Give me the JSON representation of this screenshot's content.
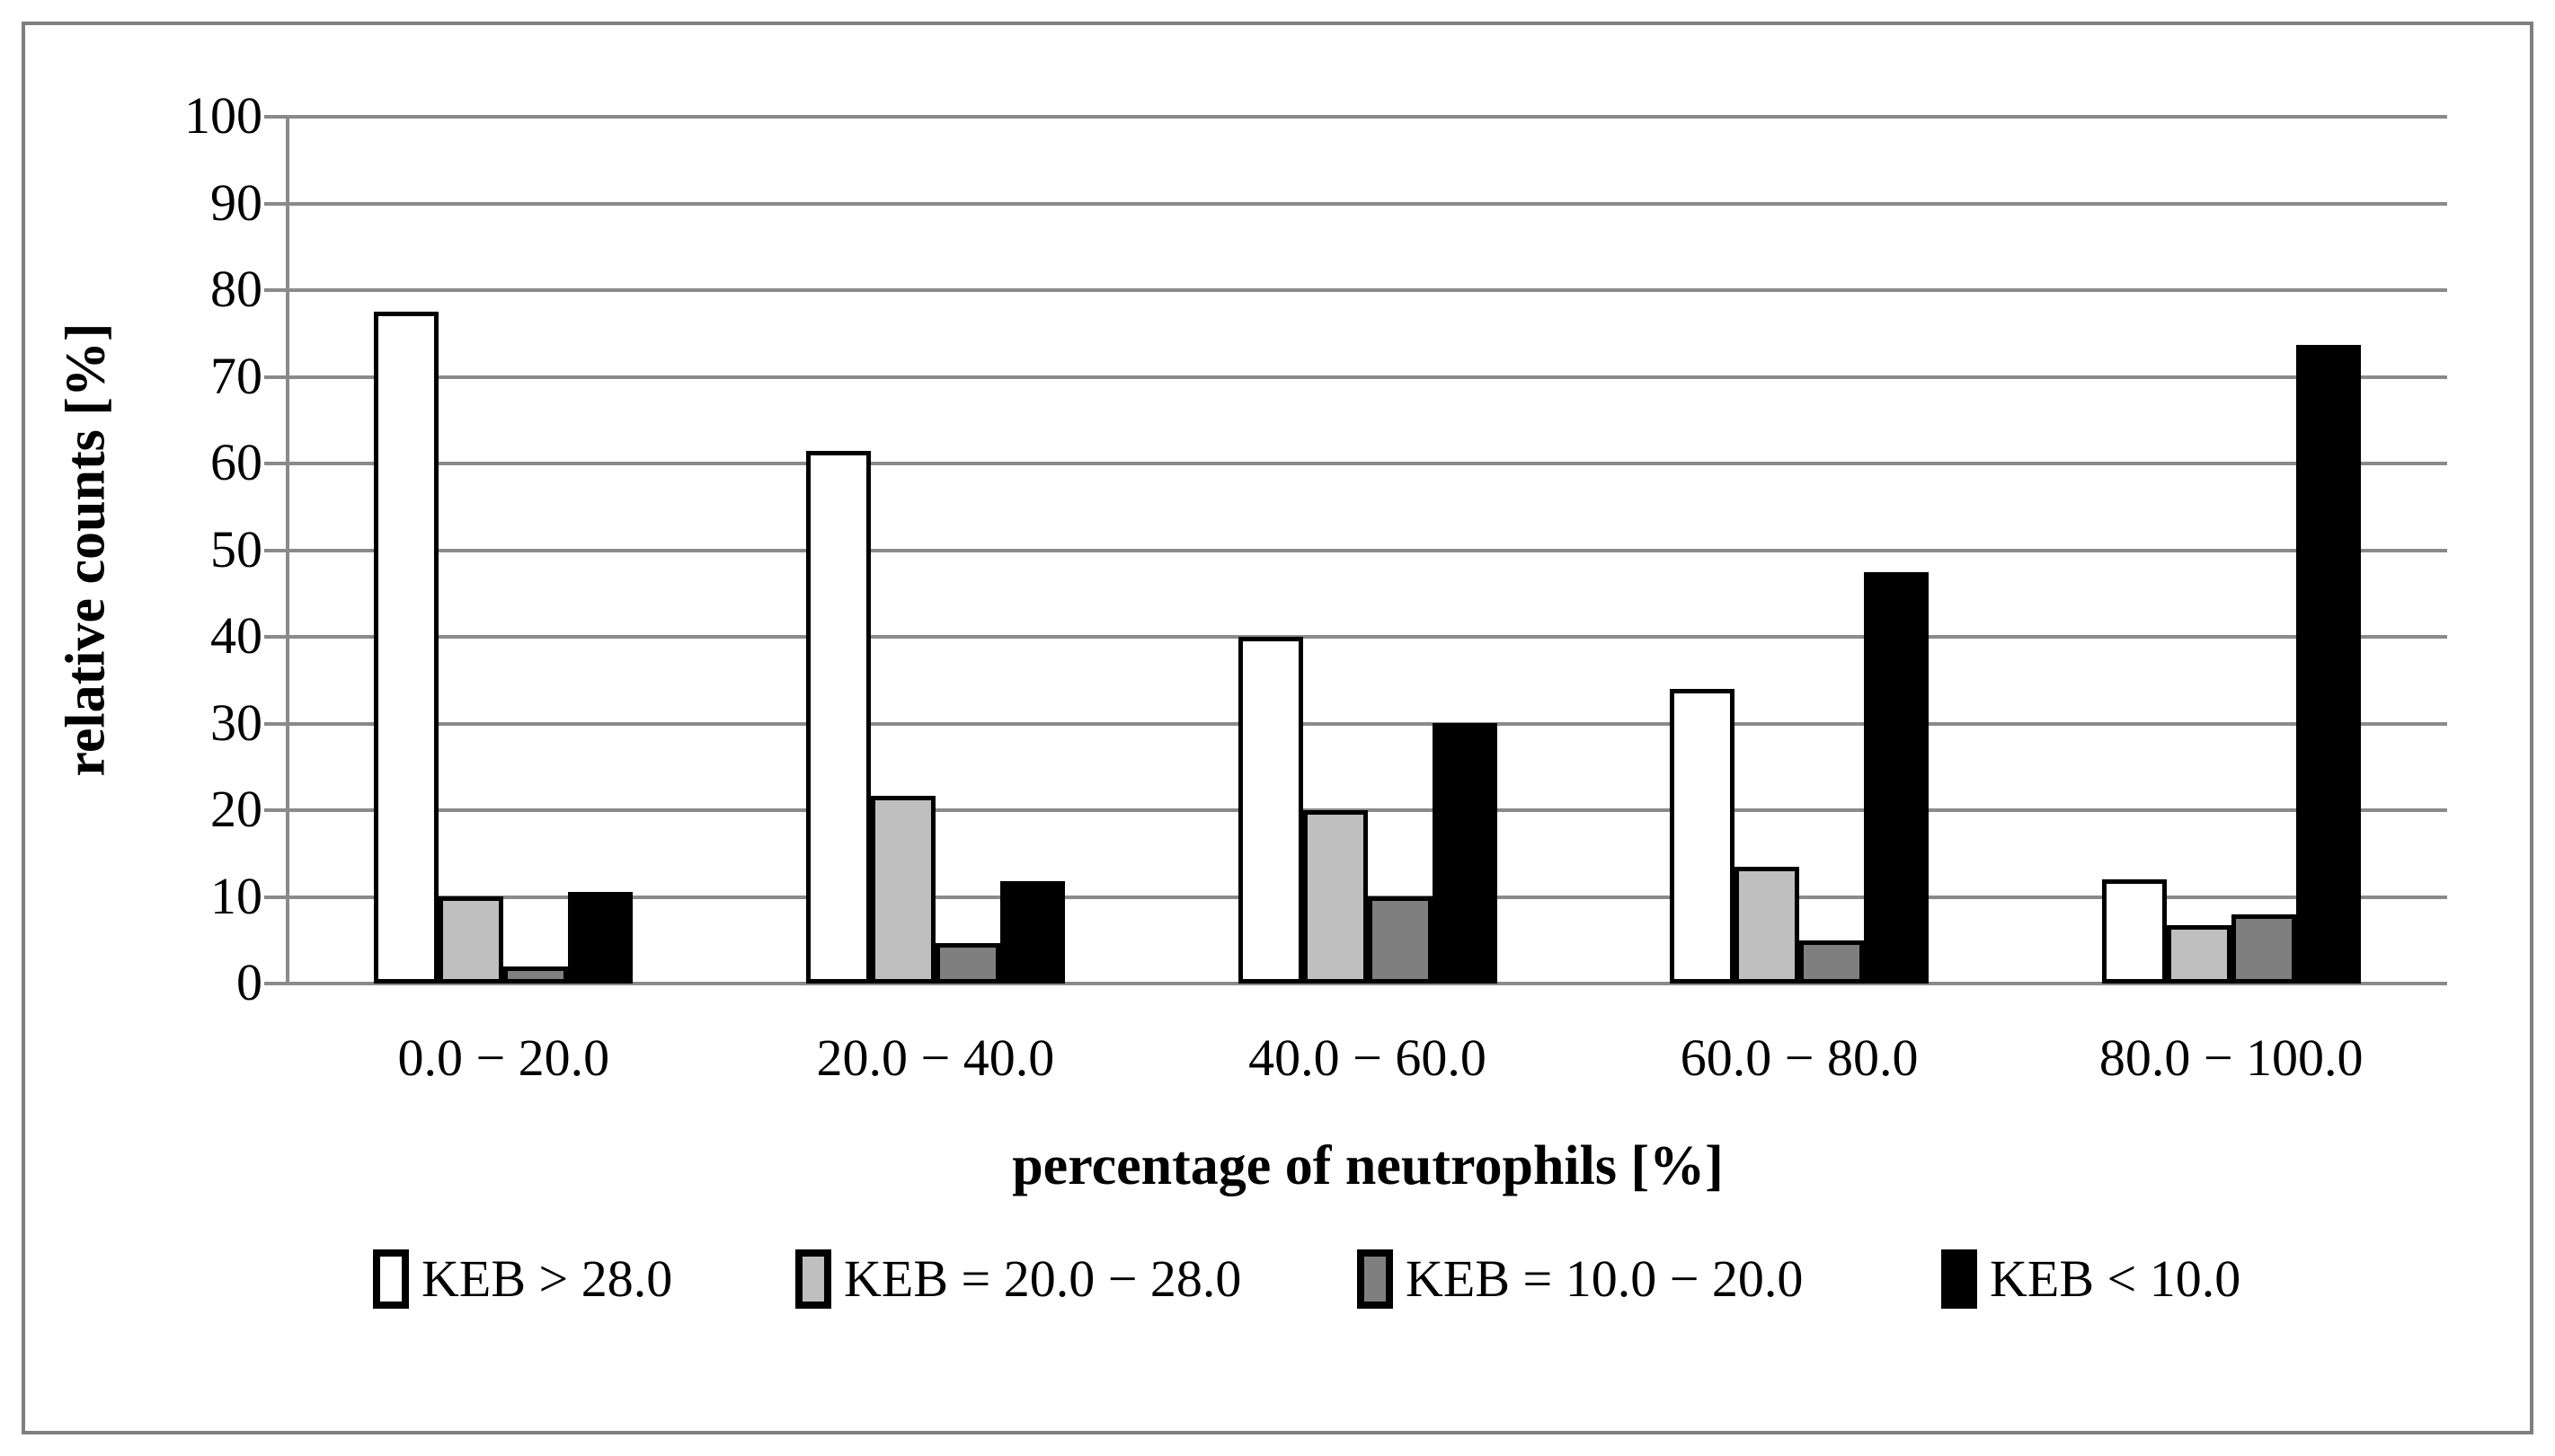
{
  "figure": {
    "background_color": "#ffffff",
    "border_color": "#7f7f7f",
    "gridline_color": "#8a8a8a",
    "bar_border_color": "#000000"
  },
  "chart_data": {
    "type": "bar",
    "title": "",
    "xlabel": "percentage of neutrophils [%]",
    "ylabel": "relative counts [%]",
    "ylim": [
      0,
      100
    ],
    "yticks": [
      "0",
      "10",
      "20",
      "30",
      "40",
      "50",
      "60",
      "70",
      "80",
      "90",
      "100"
    ],
    "grid": true,
    "legend_position": "bottom",
    "categories": [
      "0.0 − 20.0",
      "20.0  −  40.0",
      "40.0  −  60.0",
      "60.0  −  80.0",
      "80.0  −  100.0"
    ],
    "series": [
      {
        "name": "KEB > 28.0",
        "color": "#ffffff",
        "values": [
          77.5,
          61.5,
          40.0,
          34.0,
          12.0
        ]
      },
      {
        "name": "KEB = 20.0  −  28.0",
        "color": "#bfbfbf",
        "values": [
          10.0,
          21.7,
          20.0,
          13.5,
          6.7
        ]
      },
      {
        "name": "KEB = 10.0  −  20.0",
        "color": "#7f7f7f",
        "values": [
          2.0,
          4.7,
          10.0,
          5.0,
          8.0
        ]
      },
      {
        "name": "KEB < 10.0",
        "color": "#000000",
        "values": [
          10.6,
          11.8,
          30.0,
          47.5,
          73.7
        ]
      }
    ]
  }
}
